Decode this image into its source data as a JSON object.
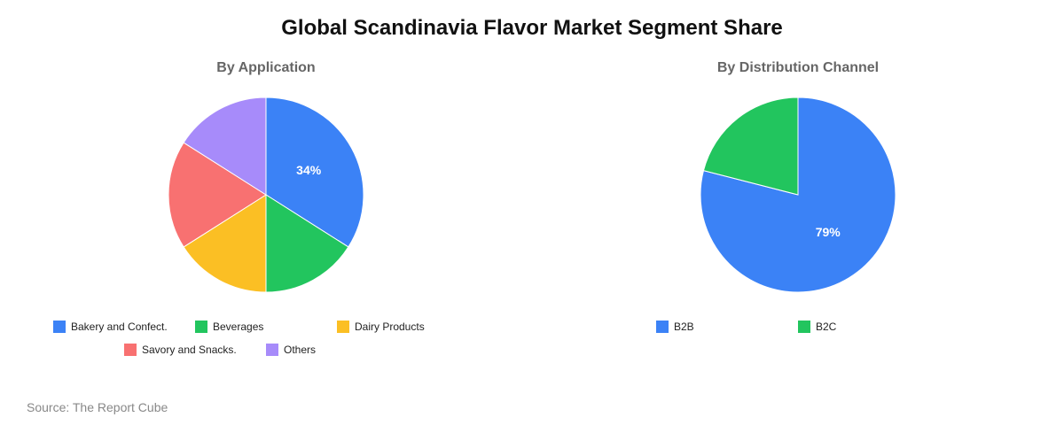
{
  "title": "Global Scandinavia Flavor Market Segment Share",
  "source": "Source: The Report Cube",
  "chart_data": [
    {
      "type": "pie",
      "title": "By Application",
      "categories": [
        "Bakery and Confect.",
        "Beverages",
        "Dairy Products",
        "Savory and Snacks.",
        "Others"
      ],
      "values": [
        34,
        16,
        16,
        18,
        16
      ],
      "colors": [
        "#3B82F6",
        "#22C55E",
        "#FBBF24",
        "#F87171",
        "#A78BFA"
      ],
      "data_labels": [
        "34%",
        "",
        "",
        "",
        ""
      ],
      "legend": "bottom"
    },
    {
      "type": "pie",
      "title": "By Distribution Channel",
      "categories": [
        "B2B",
        "B2C"
      ],
      "values": [
        79,
        21
      ],
      "colors": [
        "#3B82F6",
        "#22C55E"
      ],
      "data_labels": [
        "79%",
        ""
      ],
      "legend": "bottom"
    }
  ]
}
